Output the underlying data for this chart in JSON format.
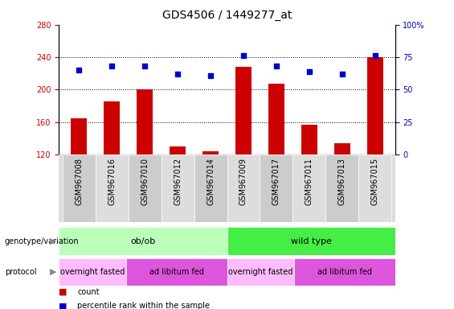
{
  "title": "GDS4506 / 1449277_at",
  "samples": [
    "GSM967008",
    "GSM967016",
    "GSM967010",
    "GSM967012",
    "GSM967014",
    "GSM967009",
    "GSM967017",
    "GSM967011",
    "GSM967013",
    "GSM967015"
  ],
  "counts": [
    165,
    185,
    200,
    130,
    124,
    228,
    207,
    157,
    134,
    240
  ],
  "percentiles": [
    65,
    68,
    68,
    62,
    61,
    76,
    68,
    64,
    62,
    76
  ],
  "ylim_left": [
    120,
    280
  ],
  "ylim_right": [
    0,
    100
  ],
  "yticks_left": [
    120,
    160,
    200,
    240,
    280
  ],
  "yticks_right": [
    0,
    25,
    50,
    75,
    100
  ],
  "bar_color": "#cc0000",
  "dot_color": "#0000cc",
  "background_color": "#ffffff",
  "genotype_groups": [
    {
      "label": "ob/ob",
      "start": 0,
      "end": 5,
      "color": "#bbffbb"
    },
    {
      "label": "wild type",
      "start": 5,
      "end": 10,
      "color": "#44ee44"
    }
  ],
  "protocol_groups": [
    {
      "label": "overnight fasted",
      "start": 0,
      "end": 2,
      "color": "#ffbbff"
    },
    {
      "label": "ad libitum fed",
      "start": 2,
      "end": 5,
      "color": "#dd55dd"
    },
    {
      "label": "overnight fasted",
      "start": 5,
      "end": 7,
      "color": "#ffbbff"
    },
    {
      "label": "ad libitum fed",
      "start": 7,
      "end": 10,
      "color": "#dd55dd"
    }
  ],
  "title_fontsize": 10,
  "tick_fontsize": 7,
  "label_fontsize": 8,
  "annot_fontsize": 7
}
